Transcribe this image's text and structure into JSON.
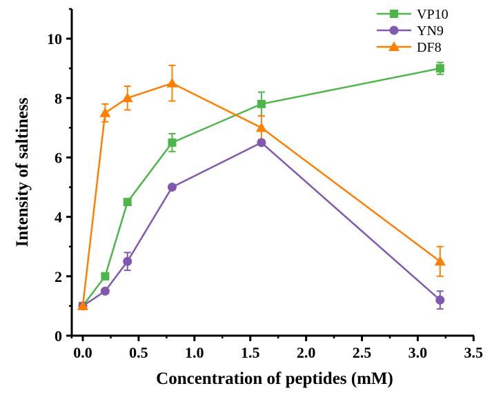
{
  "chart_data": {
    "type": "line",
    "title": "",
    "xlabel": "Concentration of peptides (mM)",
    "ylabel": "Intensity of saltiness",
    "xlim": [
      -0.1,
      3.5
    ],
    "ylim": [
      0,
      11
    ],
    "xticks": [
      0.0,
      0.5,
      1.0,
      1.5,
      2.0,
      2.5,
      3.0,
      3.5
    ],
    "xtick_labels": [
      "0.0",
      "0.5",
      "1.0",
      "1.5",
      "2.0",
      "2.5",
      "3.0",
      "3.5"
    ],
    "yticks": [
      0,
      2,
      4,
      6,
      8,
      10
    ],
    "ytick_labels": [
      "0",
      "2",
      "4",
      "6",
      "8",
      "10"
    ],
    "grid": false,
    "legend_position": "top-right",
    "x": [
      0,
      0.2,
      0.4,
      0.8,
      1.6,
      3.2
    ],
    "series": [
      {
        "name": "VP10",
        "color": "#4cb648",
        "marker": "square",
        "values": [
          1,
          2,
          4.5,
          6.5,
          7.8,
          9.0
        ],
        "errors": [
          0,
          0,
          0,
          0.3,
          0.4,
          0.2
        ]
      },
      {
        "name": "YN9",
        "color": "#8158b0",
        "marker": "circle",
        "values": [
          1,
          1.5,
          2.5,
          5.0,
          6.5,
          1.2
        ],
        "errors": [
          0,
          0,
          0.3,
          0,
          0,
          0.3
        ]
      },
      {
        "name": "DF8",
        "color": "#ff8000",
        "marker": "triangle",
        "values": [
          1,
          7.5,
          8.0,
          8.5,
          7.0,
          2.5
        ],
        "errors": [
          0,
          0.3,
          0.4,
          0.6,
          0.4,
          0.5
        ]
      }
    ]
  }
}
